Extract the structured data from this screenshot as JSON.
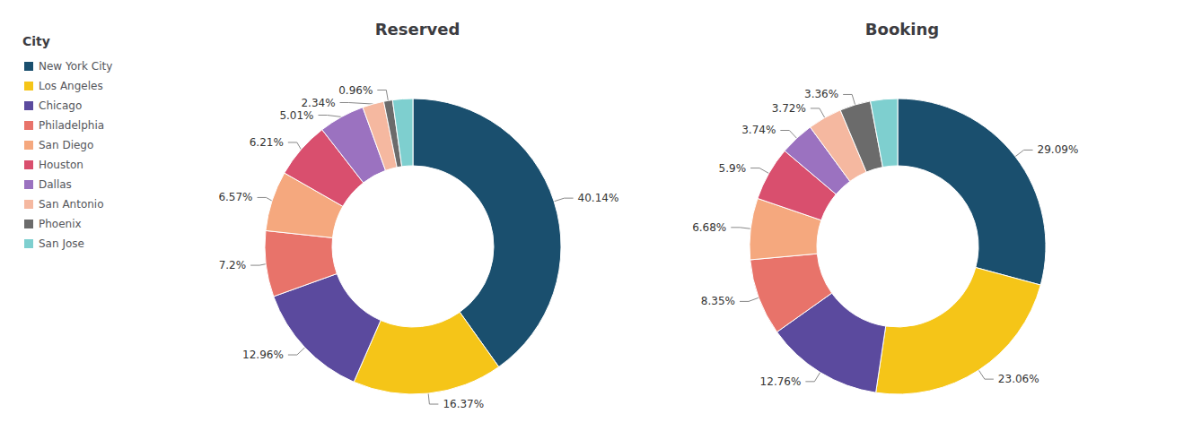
{
  "chart_data": [
    {
      "type": "pie",
      "title": "Reserved",
      "categories": [
        "New York City",
        "Los Angeles",
        "Chicago",
        "Philadelphia",
        "San Diego",
        "Houston",
        "Dallas",
        "San Antonio",
        "Phoenix",
        "San Jose"
      ],
      "values": [
        40.14,
        16.37,
        12.96,
        7.2,
        6.57,
        6.21,
        5.01,
        2.34,
        0.96,
        2.2
      ],
      "value_labels": [
        "40.14%",
        "16.37%",
        "12.96%",
        "7.2%",
        "6.57%",
        "6.21%",
        "5.01%",
        "2.34%",
        "0.96%",
        null
      ],
      "colors": [
        "#1a4f6e",
        "#f5c518",
        "#5b4a9e",
        "#e8736a",
        "#f5a87e",
        "#d94f6e",
        "#9b72c0",
        "#f5b8a0",
        "#6b6b6b",
        "#7ecfcf"
      ],
      "data_labels": true,
      "legend": "upper left",
      "legend_title": "City"
    },
    {
      "type": "pie",
      "title": "Booking",
      "categories": [
        "New York City",
        "Los Angeles",
        "Chicago",
        "Philadelphia",
        "San Diego",
        "Houston",
        "Dallas",
        "San Antonio",
        "Phoenix",
        "San Jose"
      ],
      "values": [
        29.09,
        23.06,
        12.76,
        8.35,
        6.68,
        5.9,
        3.74,
        3.72,
        3.36,
        2.94
      ],
      "value_labels": [
        "29.09%",
        "23.06%",
        "12.76%",
        "8.35%",
        "6.68%",
        "5.9%",
        "3.74%",
        "3.72%",
        "3.36%",
        null
      ],
      "colors": [
        "#1a4f6e",
        "#f5c518",
        "#5b4a9e",
        "#e8736a",
        "#f5a87e",
        "#d94f6e",
        "#9b72c0",
        "#f5b8a0",
        "#6b6b6b",
        "#7ecfcf"
      ],
      "data_labels": true
    }
  ]
}
